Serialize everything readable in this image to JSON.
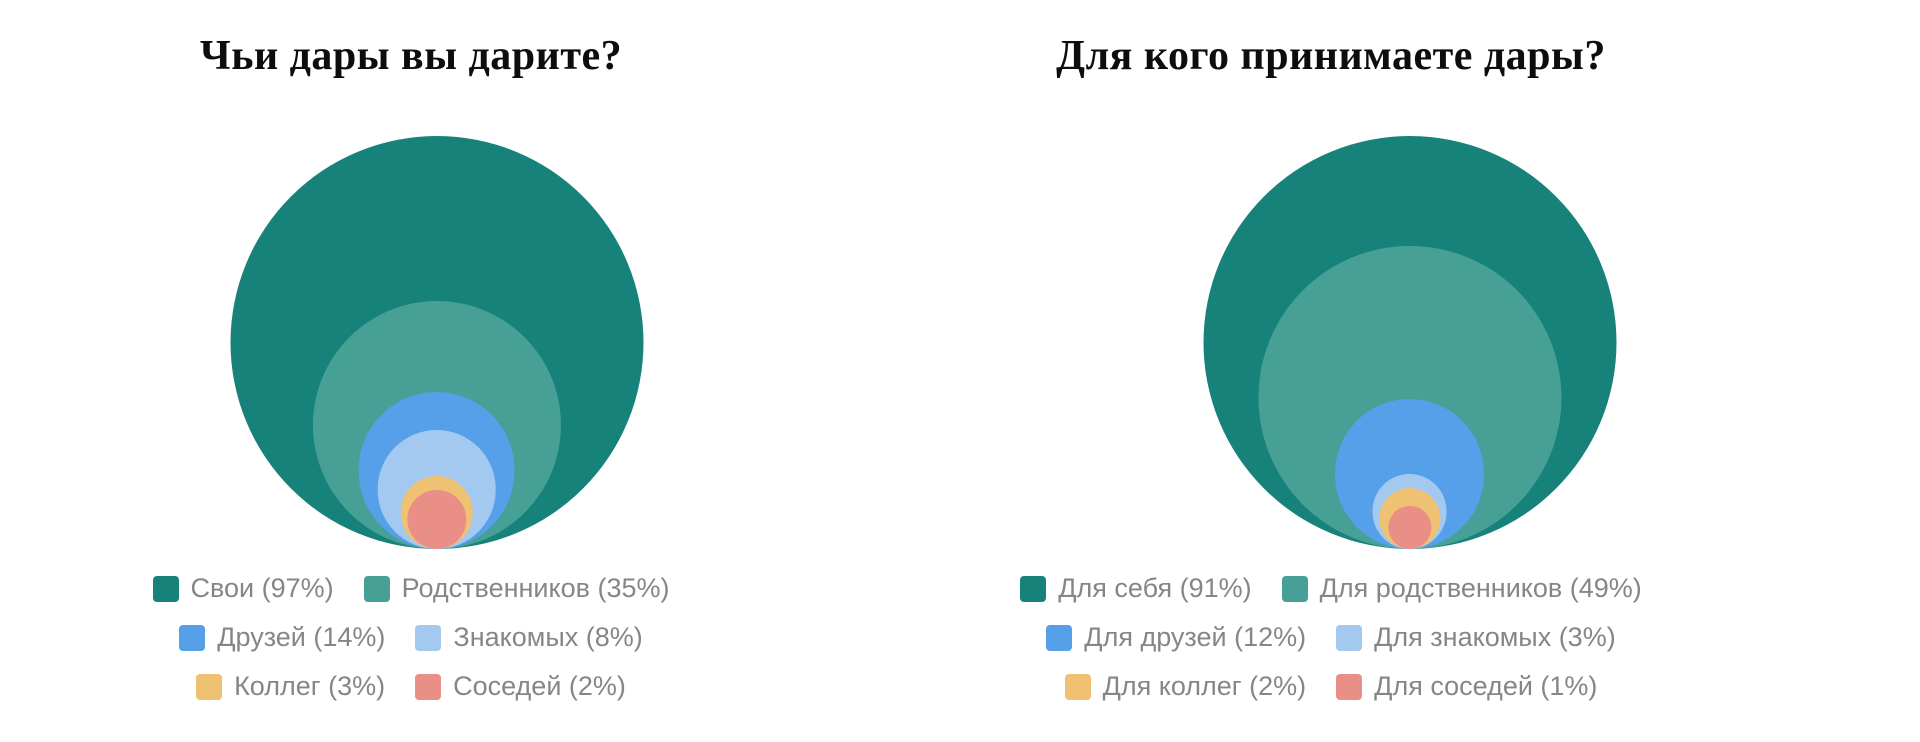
{
  "page": {
    "background_color": "#ffffff",
    "title_color": "#0d0d0d",
    "legend_text_color": "#868686"
  },
  "chart_data": [
    {
      "type": "nested-bubble",
      "title": "Чьи дары вы дарите?",
      "unit": "%",
      "legend_position": "bottom",
      "legend_columns": 2,
      "series": [
        {
          "label": "Свои",
          "value": 97,
          "color": "#17827A"
        },
        {
          "label": "Родственников",
          "value": 35,
          "color": "#46A096"
        },
        {
          "label": "Друзей",
          "value": 14,
          "color": "#55A0E8"
        },
        {
          "label": "Знакомых",
          "value": 8,
          "color": "#A4C9F1"
        },
        {
          "label": "Коллег",
          "value": 3,
          "color": "#EFC172"
        },
        {
          "label": "Соседей",
          "value": 2,
          "color": "#EA8E88"
        }
      ]
    },
    {
      "type": "nested-bubble",
      "title": "Для кого принимаете дары?",
      "unit": "%",
      "legend_position": "bottom",
      "legend_columns": 2,
      "series": [
        {
          "label": "Для себя",
          "value": 91,
          "color": "#17827A"
        },
        {
          "label": "Для родственников",
          "value": 49,
          "color": "#46A096"
        },
        {
          "label": "Для друзей",
          "value": 12,
          "color": "#55A0E8"
        },
        {
          "label": "Для знакомых",
          "value": 3,
          "color": "#A4C9F1"
        },
        {
          "label": "Для коллег",
          "value": 2,
          "color": "#EFC172"
        },
        {
          "label": "Для соседей",
          "value": 1,
          "color": "#EA8E88"
        }
      ]
    }
  ]
}
